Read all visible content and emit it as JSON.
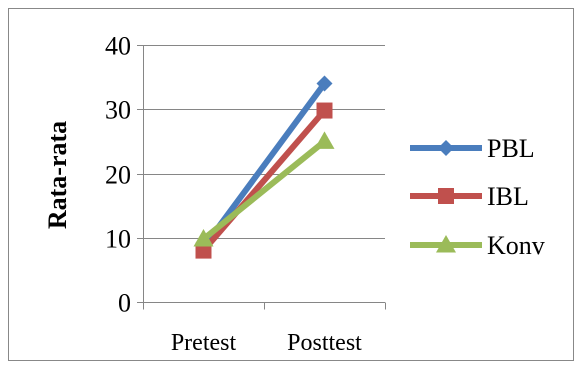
{
  "chart_data": {
    "type": "line",
    "title": "",
    "xlabel": "",
    "ylabel": "Rata-rata",
    "categories": [
      "Pretest",
      "Posttest"
    ],
    "ylim": [
      0,
      40
    ],
    "yticks": [
      0,
      10,
      20,
      30,
      40
    ],
    "grid": true,
    "legend_position": "right",
    "series": [
      {
        "name": "PBL",
        "values": [
          8.5,
          34.0
        ],
        "color": "#4a7dbd",
        "marker": "diamond"
      },
      {
        "name": "IBL",
        "values": [
          8.0,
          29.8
        ],
        "color": "#c0504d",
        "marker": "square"
      },
      {
        "name": "Konv",
        "values": [
          9.8,
          25.0
        ],
        "color": "#9bbb59",
        "marker": "triangle"
      }
    ]
  }
}
